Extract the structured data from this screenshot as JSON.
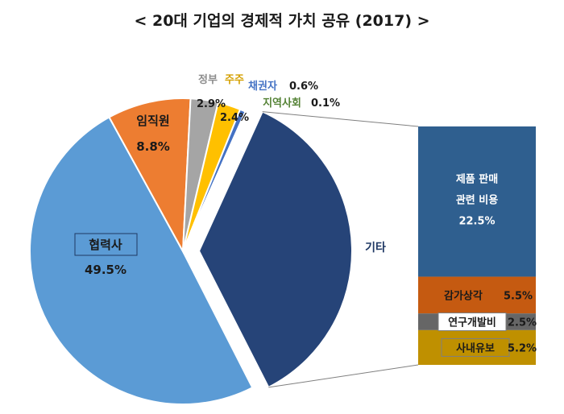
{
  "chart_data": {
    "type": "pie",
    "title": "< 20대 기업의 경제적 가치 공유 (2017) >",
    "colors": {
      "협력사": "#5b9bd5",
      "임직원": "#ed7d31",
      "정부": "#a5a5a5",
      "주주": "#ffc000",
      "채권자": "#4472c4",
      "지역사회": "#70ad47",
      "기타": "#264478",
      "제품 판매 관련 비용": "#2f5f8f",
      "감가상각": "#c55a11",
      "연구개발비": "#666666",
      "사내유보": "#bf9000"
    },
    "slices": [
      {
        "key": "p-coop",
        "name": "협력사",
        "value": 49.5,
        "value_label": "49.5%",
        "color": "#5b9bd5"
      },
      {
        "key": "p-emp",
        "name": "임직원",
        "value": 8.8,
        "value_label": "8.8%",
        "color": "#ed7d31"
      },
      {
        "key": "p-gov",
        "name": "정부",
        "value": 2.9,
        "value_label": "2.9%",
        "color": "#a5a5a5"
      },
      {
        "key": "p-share",
        "name": "주주",
        "value": 2.4,
        "value_label": "2.4%",
        "color": "#ffc000"
      },
      {
        "key": "p-cred",
        "name": "채권자",
        "value": 0.6,
        "value_label": "0.6%",
        "color": "#4472c4"
      },
      {
        "key": "p-comm",
        "name": "지역사회",
        "value": 0.1,
        "value_label": "0.1%",
        "color": "#70ad47"
      },
      {
        "key": "p-etc",
        "name": "기타",
        "value": 35.7,
        "value_label": "",
        "color": "#264478"
      }
    ],
    "other_breakdown": {
      "name": "기타",
      "segments": [
        {
          "key": "b-sales",
          "name_lines": [
            "제품 판매",
            "관련 비용"
          ],
          "name": "제품 판매 관련 비용",
          "value": 22.5,
          "value_label": "22.5%",
          "color": "#2f5f8f"
        },
        {
          "key": "b-dep",
          "name": "감가상각",
          "value": 5.5,
          "value_label": "5.5%",
          "color": "#c55a11"
        },
        {
          "key": "b-rnd",
          "name": "연구개발비",
          "value": 2.5,
          "value_label": "2.5%",
          "color": "#666666"
        },
        {
          "key": "b-ret",
          "name": "사내유보",
          "value": 5.2,
          "value_label": "5.2%",
          "color": "#bf9000"
        }
      ]
    }
  }
}
